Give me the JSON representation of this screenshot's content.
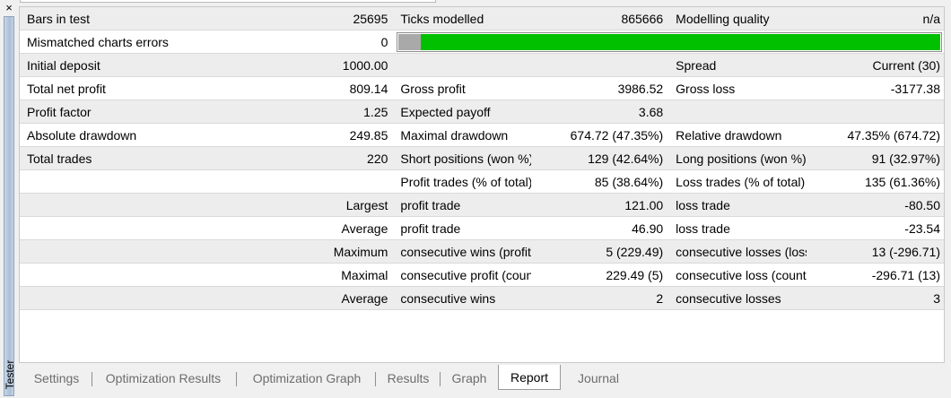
{
  "window": {
    "close_glyph": "×",
    "side_label": "Tester"
  },
  "report": {
    "rows": [
      [
        "Bars in test",
        "25695",
        "Ticks modelled",
        "865666",
        "Modelling quality",
        "n/a"
      ],
      [
        "Mismatched charts errors",
        "0"
      ],
      [
        "Initial deposit",
        "1000.00",
        "",
        "",
        "Spread",
        "Current (30)"
      ],
      [
        "Total net profit",
        "809.14",
        "Gross profit",
        "3986.52",
        "Gross loss",
        "-3177.38"
      ],
      [
        "Profit factor",
        "1.25",
        "Expected payoff",
        "3.68",
        "",
        ""
      ],
      [
        "Absolute drawdown",
        "249.85",
        "Maximal drawdown",
        "674.72 (47.35%)",
        "Relative drawdown",
        "47.35% (674.72)"
      ],
      [
        "Total trades",
        "220",
        "Short positions (won %)",
        "129 (42.64%)",
        "Long positions (won %)",
        "91 (32.97%)"
      ],
      [
        "",
        "",
        "Profit trades (% of total)",
        "85 (38.64%)",
        "Loss trades (% of total)",
        "135 (61.36%)"
      ],
      [
        "",
        "Largest",
        "profit trade",
        "121.00",
        "loss trade",
        "-80.50"
      ],
      [
        "",
        "Average",
        "profit trade",
        "46.90",
        "loss trade",
        "-23.54"
      ],
      [
        "",
        "Maximum",
        "consecutive wins (profit in ...",
        "5 (229.49)",
        "consecutive losses (loss in m...",
        "13 (-296.71)"
      ],
      [
        "",
        "Maximal",
        "consecutive profit (count of ...",
        "229.49 (5)",
        "consecutive loss (count of lo...",
        "-296.71 (13)"
      ],
      [
        "",
        "Average",
        "consecutive wins",
        "2",
        "consecutive losses",
        "3"
      ]
    ],
    "modelling_quality_bar": {
      "gray_fraction": 0.037,
      "colors": {
        "gray": "#a9a9a9",
        "green": "#00c000"
      }
    }
  },
  "tabs": [
    "Settings",
    "Optimization Results",
    "Optimization Graph",
    "Results",
    "Graph",
    "Report",
    "Journal"
  ],
  "active_tab": "Report"
}
